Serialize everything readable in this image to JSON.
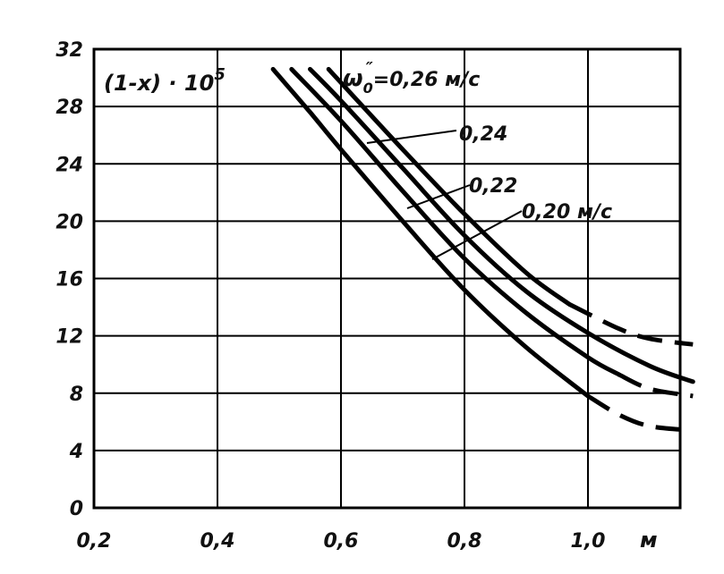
{
  "chart_data": {
    "type": "line",
    "title": "",
    "ylabel": "(1-x) · 10",
    "ylabel_exponent": "5",
    "xlabel": "м",
    "xlim": [
      0.2,
      1.17
    ],
    "ylim": [
      0,
      32
    ],
    "grid": true,
    "x_ticks": [
      {
        "value": 0.2,
        "label": "0,2"
      },
      {
        "value": 0.4,
        "label": "0,4"
      },
      {
        "value": 0.6,
        "label": "0,6"
      },
      {
        "value": 0.8,
        "label": "0,8"
      },
      {
        "value": 1.0,
        "label": "1,0"
      }
    ],
    "y_ticks": [
      {
        "value": 0,
        "label": "0"
      },
      {
        "value": 4,
        "label": "4"
      },
      {
        "value": 8,
        "label": "8"
      },
      {
        "value": 12,
        "label": "12"
      },
      {
        "value": 16,
        "label": "16"
      },
      {
        "value": 20,
        "label": "20"
      },
      {
        "value": 24,
        "label": "24"
      },
      {
        "value": 28,
        "label": "28"
      },
      {
        "value": 32,
        "label": "32"
      }
    ],
    "series": [
      {
        "name": "0,20 м/с",
        "solid": [
          [
            0.49,
            30.6
          ],
          [
            0.55,
            27.6
          ],
          [
            0.6,
            25.0
          ],
          [
            0.7,
            20.0
          ],
          [
            0.8,
            15.2
          ],
          [
            0.9,
            11.2
          ],
          [
            1.0,
            7.8
          ]
        ],
        "dashed": [
          [
            1.0,
            7.8
          ],
          [
            1.05,
            6.5
          ],
          [
            1.1,
            5.7
          ],
          [
            1.17,
            5.4
          ]
        ]
      },
      {
        "name": "0,22",
        "solid": [
          [
            0.52,
            30.6
          ],
          [
            0.6,
            27.0
          ],
          [
            0.7,
            22.1
          ],
          [
            0.8,
            17.4
          ],
          [
            0.9,
            13.6
          ],
          [
            1.0,
            10.5
          ],
          [
            1.05,
            9.3
          ]
        ],
        "dashed": [
          [
            1.05,
            9.3
          ],
          [
            1.1,
            8.3
          ],
          [
            1.17,
            7.8
          ]
        ]
      },
      {
        "name": "0,24",
        "solid": [
          [
            0.55,
            30.6
          ],
          [
            0.6,
            28.4
          ],
          [
            0.7,
            23.7
          ],
          [
            0.8,
            19.0
          ],
          [
            0.9,
            15.1
          ],
          [
            1.0,
            12.2
          ],
          [
            1.1,
            9.9
          ],
          [
            1.17,
            8.8
          ]
        ],
        "dashed": []
      },
      {
        "name": "ω₀″ = 0,26 м/с",
        "solid": [
          [
            0.58,
            30.6
          ],
          [
            0.7,
            25.0
          ],
          [
            0.8,
            20.5
          ],
          [
            0.9,
            16.4
          ],
          [
            0.97,
            14.2
          ]
        ],
        "dashed": [
          [
            0.97,
            14.2
          ],
          [
            1.05,
            12.5
          ],
          [
            1.1,
            11.8
          ],
          [
            1.17,
            11.4
          ]
        ]
      }
    ],
    "annotations": {
      "omega_symbol": "ω",
      "omega_sub": "0",
      "omega_sup": "″",
      "omega_value": "=0,26 м/с",
      "label_024": "0,24",
      "label_022": "0,22",
      "label_020": "0,20 м/с"
    }
  }
}
